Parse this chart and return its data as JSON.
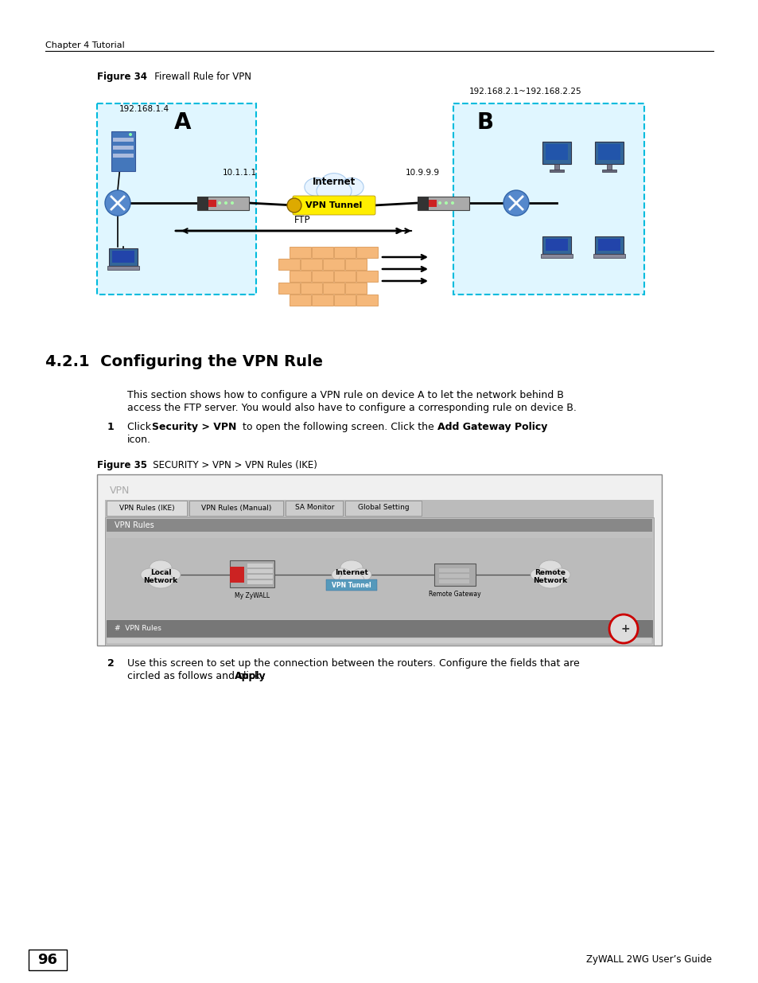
{
  "page_bg": "#ffffff",
  "header_text": "Chapter 4 Tutorial",
  "page_number": "96",
  "footer_text": "ZyWALL 2WG User’s Guide",
  "section_title": "4.2.1  Configuring the VPN Rule",
  "fig34_label_bold": "Figure 34",
  "fig34_label_rest": "   Firewall Rule for VPN",
  "fig35_label_bold": "Figure 35",
  "fig35_label_rest": "   SECURITY > VPN > VPN Rules (IKE)",
  "body_text1a": "This section shows how to configure a VPN rule on device A to let the network behind B",
  "body_text1b": "access the FTP server. You would also have to configure a corresponding rule on device B.",
  "ip_A": "192.168.1.4",
  "ip_B_range": "192.168.2.1~192.168.2.25",
  "ip_gw_A": "10.1.1.1",
  "ip_gw_B": "10.9.9.9",
  "label_A": "A",
  "label_B": "B",
  "label_internet": "Internet",
  "label_vpn_tunnel": "VPN Tunnel",
  "label_ftp": "FTP"
}
